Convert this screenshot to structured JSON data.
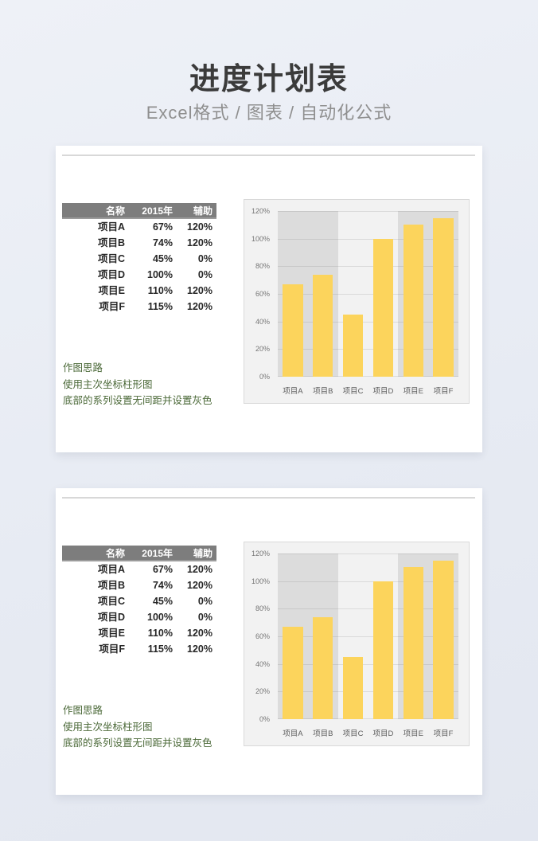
{
  "page": {
    "title": "进度计划表",
    "subtitle": "Excel格式 / 图表 / 自动化公式"
  },
  "colors": {
    "bar_yellow": "#fcd45c",
    "aux_gray": "#dcdcdc",
    "chart_background": "#f2f2f2",
    "table_header_gray": "#7d7d7d",
    "notes_green": "#4a6837"
  },
  "panels": [
    {
      "table": {
        "headers": [
          "名称",
          "2015年",
          "辅助"
        ],
        "rows": [
          [
            "项目A",
            "67%",
            "120%"
          ],
          [
            "项目B",
            "74%",
            "120%"
          ],
          [
            "项目C",
            "45%",
            "0%"
          ],
          [
            "项目D",
            "100%",
            "0%"
          ],
          [
            "项目E",
            "110%",
            "120%"
          ],
          [
            "项目F",
            "115%",
            "120%"
          ]
        ]
      },
      "notes": [
        "作图思路",
        "使用主次坐标柱形图",
        "底部的系列设置无间距并设置灰色"
      ]
    },
    {
      "table": {
        "headers": [
          "名称",
          "2015年",
          "辅助"
        ],
        "rows": [
          [
            "项目A",
            "67%",
            "120%"
          ],
          [
            "项目B",
            "74%",
            "120%"
          ],
          [
            "项目C",
            "45%",
            "0%"
          ],
          [
            "项目D",
            "100%",
            "0%"
          ],
          [
            "项目E",
            "110%",
            "120%"
          ],
          [
            "项目F",
            "115%",
            "120%"
          ]
        ]
      },
      "notes": [
        "作图思路",
        "使用主次坐标柱形图",
        "底部的系列设置无间距并设置灰色"
      ]
    }
  ],
  "chart_data": [
    {
      "type": "bar",
      "title": "",
      "categories": [
        "项目A",
        "项目B",
        "项目C",
        "项目D",
        "项目E",
        "项目F"
      ],
      "series": [
        {
          "name": "2015年",
          "values": [
            67,
            74,
            45,
            100,
            110,
            115
          ],
          "unit": "%",
          "color": "#fcd45c"
        },
        {
          "name": "辅助",
          "values": [
            120,
            120,
            0,
            0,
            120,
            120
          ],
          "unit": "%",
          "color": "#dcdcdc",
          "gap_width": 0,
          "role": "background"
        }
      ],
      "ylim": [
        0,
        120
      ],
      "y_ticks": [
        "0%",
        "20%",
        "40%",
        "60%",
        "80%",
        "100%",
        "120%"
      ],
      "xlabel": "",
      "ylabel": "",
      "grid": true,
      "legend": false
    },
    {
      "type": "bar",
      "title": "",
      "categories": [
        "项目A",
        "项目B",
        "项目C",
        "项目D",
        "项目E",
        "项目F"
      ],
      "series": [
        {
          "name": "2015年",
          "values": [
            67,
            74,
            45,
            100,
            110,
            115
          ],
          "unit": "%",
          "color": "#fcd45c"
        },
        {
          "name": "辅助",
          "values": [
            120,
            120,
            0,
            0,
            120,
            120
          ],
          "unit": "%",
          "color": "#dcdcdc",
          "gap_width": 0,
          "role": "background"
        }
      ],
      "ylim": [
        0,
        120
      ],
      "y_ticks": [
        "0%",
        "20%",
        "40%",
        "60%",
        "80%",
        "100%",
        "120%"
      ],
      "xlabel": "",
      "ylabel": "",
      "grid": true,
      "legend": false
    }
  ]
}
